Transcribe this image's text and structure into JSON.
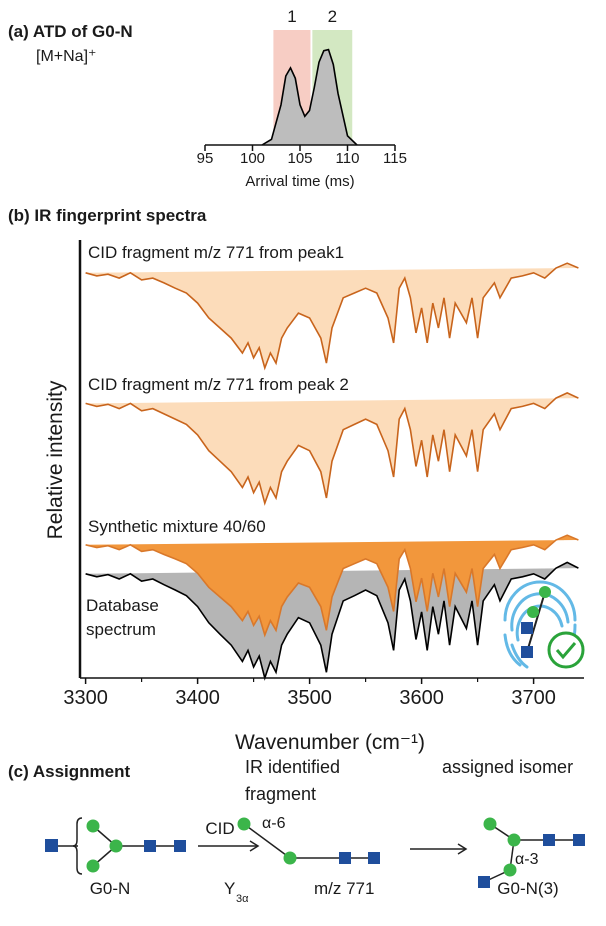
{
  "chart_data": [
    {
      "type": "area",
      "title": "(a) ATD of G0-N",
      "subtitle": "[M+Na]⁺",
      "xlabel": "Arrival time (ms)",
      "xlim": [
        95,
        115
      ],
      "xticks": [
        95,
        100,
        105,
        110,
        115
      ],
      "ylim": [
        0,
        1
      ],
      "regions": [
        {
          "label": "1",
          "range": [
            102.2,
            106.1
          ],
          "color": "#f7cdc4"
        },
        {
          "label": "2",
          "range": [
            106.3,
            110.5
          ],
          "color": "#d3e8c2"
        }
      ],
      "x": [
        101,
        102,
        103,
        103.5,
        104,
        104.5,
        105,
        105.5,
        106,
        106.5,
        107,
        107.5,
        108,
        108.5,
        109,
        110,
        111
      ],
      "series": [
        {
          "color": "#000000",
          "fill": "#bdbdbd",
          "values": [
            0,
            0.05,
            0.35,
            0.6,
            0.67,
            0.58,
            0.35,
            0.25,
            0.3,
            0.5,
            0.72,
            0.82,
            0.83,
            0.7,
            0.45,
            0.08,
            0
          ]
        }
      ]
    },
    {
      "type": "area",
      "title": "(b) IR fingerprint spectra",
      "xlabel": "Wavenumber (cm⁻¹)",
      "ylabel": "Relative intensity",
      "xlim": [
        3295,
        3745
      ],
      "xticks": [
        3300,
        3400,
        3500,
        3600,
        3700
      ],
      "xminor": [
        3350,
        3450,
        3550,
        3650
      ],
      "ylim": [
        0,
        10
      ],
      "x": [
        3300,
        3310,
        3320,
        3330,
        3340,
        3350,
        3360,
        3370,
        3380,
        3390,
        3400,
        3410,
        3420,
        3430,
        3440,
        3445,
        3450,
        3455,
        3460,
        3465,
        3470,
        3475,
        3480,
        3490,
        3500,
        3510,
        3515,
        3520,
        3530,
        3540,
        3550,
        3560,
        3570,
        3575,
        3580,
        3585,
        3590,
        3595,
        3600,
        3605,
        3610,
        3615,
        3620,
        3625,
        3630,
        3640,
        3645,
        3650,
        3655,
        3665,
        3670,
        3680,
        3690,
        3700,
        3710,
        3720,
        3730,
        3740
      ],
      "series": [
        {
          "name": "CID fragment m/z 771 from peak1",
          "color": "#c8641c",
          "fill": "#fcdcba",
          "values": [
            9.25,
            9.18,
            9.22,
            9.13,
            9.25,
            9.09,
            9.13,
            9.02,
            8.9,
            8.79,
            8.56,
            8.22,
            7.99,
            7.76,
            7.42,
            7.65,
            7.31,
            7.54,
            7.08,
            7.42,
            7.19,
            7.76,
            7.99,
            8.33,
            8.22,
            7.76,
            7.19,
            7.99,
            8.68,
            8.79,
            8.9,
            8.79,
            8.22,
            7.65,
            8.9,
            9.13,
            8.68,
            7.88,
            8.45,
            7.65,
            8.56,
            7.99,
            8.68,
            7.76,
            8.56,
            8.11,
            8.68,
            7.76,
            8.68,
            9.02,
            8.68,
            9.13,
            9.18,
            9.25,
            9.13,
            9.36,
            9.47,
            9.36
          ]
        },
        {
          "name": "CID fragment m/z 771 from peak 2",
          "color": "#c8641c",
          "fill": "#fcdcba",
          "values": [
            6.27,
            6.2,
            6.25,
            6.15,
            6.27,
            6.1,
            6.15,
            6.03,
            5.91,
            5.79,
            5.55,
            5.19,
            4.95,
            4.71,
            4.35,
            4.59,
            4.23,
            4.47,
            3.99,
            4.35,
            4.11,
            4.71,
            4.95,
            5.31,
            5.19,
            4.71,
            4.11,
            4.95,
            5.67,
            5.79,
            5.91,
            5.79,
            5.19,
            4.59,
            5.91,
            6.15,
            5.67,
            4.83,
            5.43,
            4.59,
            5.55,
            4.95,
            5.67,
            4.71,
            5.55,
            5.07,
            5.67,
            4.71,
            5.67,
            6.03,
            5.67,
            6.15,
            6.2,
            6.27,
            6.15,
            6.39,
            6.51,
            6.39
          ]
        },
        {
          "name": "Synthetic mixture 40/60",
          "color": "#d9782a",
          "fill": "#f2973c",
          "values": [
            3.04,
            2.98,
            3.02,
            2.93,
            3.04,
            2.89,
            2.93,
            2.82,
            2.72,
            2.61,
            2.39,
            2.07,
            1.85,
            1.63,
            1.31,
            1.52,
            1.2,
            1.41,
            0.98,
            1.31,
            1.09,
            1.63,
            1.85,
            2.17,
            2.07,
            1.63,
            1.09,
            1.85,
            2.5,
            2.61,
            2.72,
            2.61,
            2.07,
            1.52,
            2.72,
            2.93,
            2.5,
            1.74,
            2.28,
            1.52,
            2.39,
            1.85,
            2.5,
            1.63,
            2.39,
            1.96,
            2.5,
            1.63,
            2.5,
            2.82,
            2.5,
            2.93,
            2.98,
            3.04,
            2.93,
            3.15,
            3.26,
            3.15
          ]
        },
        {
          "name": "Database spectrum",
          "color": "#000000",
          "fill": "#b5b5b5",
          "values": [
            2.38,
            2.31,
            2.36,
            2.26,
            2.38,
            2.21,
            2.26,
            2.13,
            2.01,
            1.88,
            1.63,
            1.26,
            1.0,
            0.75,
            0.38,
            0.63,
            0.25,
            0.5,
            0,
            0.38,
            0.13,
            0.75,
            1.0,
            1.38,
            1.26,
            0.75,
            0.13,
            1.0,
            1.76,
            1.88,
            2.01,
            1.88,
            1.26,
            0.63,
            2.01,
            2.26,
            1.76,
            0.88,
            1.51,
            0.63,
            1.63,
            1.0,
            1.76,
            0.75,
            1.63,
            1.13,
            1.76,
            0.75,
            1.76,
            2.13,
            1.76,
            2.26,
            2.31,
            2.38,
            2.26,
            2.51,
            2.64,
            2.51
          ]
        }
      ]
    }
  ],
  "assignment": {
    "title": "(c) Assignment",
    "fragment_heading": [
      "IR identified",
      "fragment"
    ],
    "isomer_heading": "assigned isomer",
    "arrow_label": "CID",
    "precursor": "G0-N",
    "fragment_name": {
      "main": "Y",
      "sub": "3α"
    },
    "fragment_mass": "m/z 771",
    "fragment_linkage": "α-6",
    "isomer_linkage": "α-3",
    "isomer": "G0-N(3)"
  }
}
